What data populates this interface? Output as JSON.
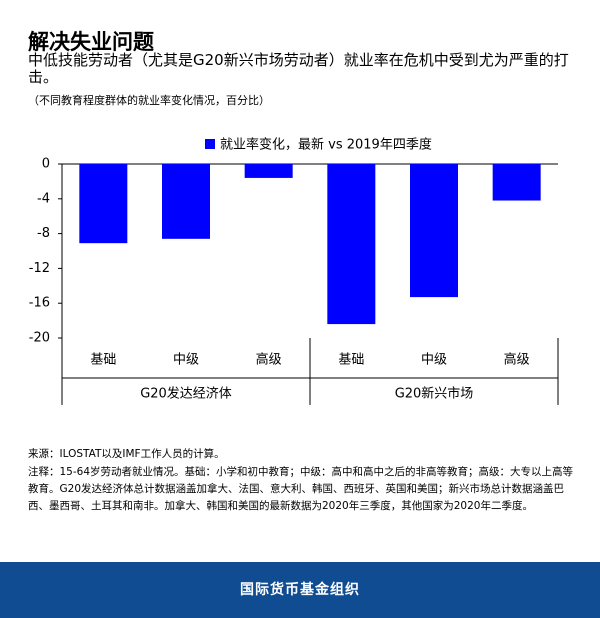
{
  "chart_data": {
    "type": "bar",
    "title": "解决失业问题",
    "subtitle": "中低技能劳动者（尤其是G20新兴市场劳动者）就业率在危机中受到尤为严重的打击。",
    "y_label": "（不同教育程度群体的就业率变化情况，百分比）",
    "categories": [
      "基础",
      "中级",
      "高级",
      "基础",
      "中级",
      "高级"
    ],
    "groups": [
      "G20发达经济体",
      "G20新兴市场"
    ],
    "series": [
      {
        "name": "就业率变化，最新 vs 2019年四季度",
        "color": "#0000ff",
        "values": [
          -9.1,
          -8.6,
          -1.6,
          -18.4,
          -15.3,
          -4.2
        ]
      }
    ],
    "ylim": [
      -20,
      0
    ],
    "yticks": [
      0,
      -4,
      -8,
      -12,
      -16,
      -20
    ],
    "source": "来源：ILOSTAT以及IMF工作人员的计算。",
    "note": "注释：15-64岁劳动者就业情况。基础：小学和初中教育；中级：高中和高中之后的非高等教育；高级：大专以上高等教育。G20发达经济体总计数据涵盖加拿大、法国、意大利、韩国、西班牙、英国和美国；新兴市场总计数据涵盖巴西、墨西哥、土耳其和南非。加拿大、韩国和美国的最新数据为2020年三季度，其他国家为2020年二季度。",
    "footer": "国际货币基金组织"
  }
}
